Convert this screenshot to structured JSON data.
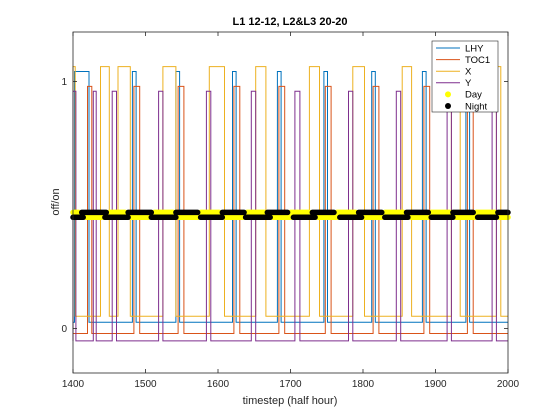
{
  "chart_data": {
    "type": "line",
    "title": "L1 12-12, L2&L3 20-20",
    "xlabel": "timestep (half hour)",
    "ylabel": "off/on",
    "xlim": [
      1400,
      2000
    ],
    "ylim": [
      -0.18,
      1.2
    ],
    "xticks": [
      1400,
      1500,
      1600,
      1700,
      1800,
      1900,
      2000
    ],
    "yticks": [
      0,
      1
    ],
    "xtick_labels": [
      "1400",
      "1500",
      "1600",
      "1700",
      "1800",
      "1900",
      "2000"
    ],
    "ytick_labels": [
      "0",
      "1"
    ],
    "grid": false,
    "legend_position": "top-right",
    "series": [
      {
        "name": "LHY",
        "kind": "pulse",
        "color": "#0072BD",
        "low": 0.025,
        "high": 1.04,
        "on": [
          [
            1402,
            1422
          ],
          [
            1482,
            1487
          ],
          [
            1542,
            1547
          ],
          [
            1620,
            1625
          ],
          [
            1682,
            1687
          ],
          [
            1746,
            1751
          ],
          [
            1812,
            1817
          ],
          [
            1882,
            1887
          ],
          [
            1942,
            1947
          ]
        ]
      },
      {
        "name": "TOC1",
        "kind": "pulse",
        "color": "#D95319",
        "low": -0.02,
        "high": 0.98,
        "on": [
          [
            1420,
            1426
          ],
          [
            1484,
            1492
          ],
          [
            1545,
            1553
          ],
          [
            1622,
            1630
          ],
          [
            1684,
            1692
          ],
          [
            1748,
            1756
          ],
          [
            1814,
            1822
          ],
          [
            1884,
            1892
          ],
          [
            1944,
            1952
          ]
        ]
      },
      {
        "name": "X",
        "kind": "pulse",
        "color": "#EDB120",
        "low": 0.05,
        "high": 1.06,
        "on": [
          [
            1400,
            1403
          ],
          [
            1438,
            1450
          ],
          [
            1462,
            1479
          ],
          [
            1524,
            1542
          ],
          [
            1588,
            1609
          ],
          [
            1652,
            1666
          ],
          [
            1726,
            1740
          ],
          [
            1786,
            1802
          ],
          [
            1854,
            1867
          ],
          [
            1922,
            1934
          ],
          [
            1984,
            1990
          ]
        ]
      },
      {
        "name": "Y",
        "kind": "pulse",
        "color": "#7E2F8E",
        "low": -0.05,
        "high": 0.96,
        "on": [
          [
            1400,
            1404
          ],
          [
            1428,
            1432
          ],
          [
            1454,
            1460
          ],
          [
            1518,
            1524
          ],
          [
            1584,
            1590
          ],
          [
            1646,
            1652
          ],
          [
            1706,
            1713
          ],
          [
            1780,
            1786
          ],
          [
            1846,
            1852
          ],
          [
            1916,
            1922
          ],
          [
            1978,
            1984
          ]
        ]
      },
      {
        "name": "Day",
        "kind": "marker",
        "color": "#FFFF00",
        "blocks": [
          {
            "y": 0.47,
            "ranges": [
              [
                1400,
                1408
              ],
              [
                1450,
                1472
              ],
              [
                1512,
                1538
              ],
              [
                1576,
                1602
              ],
              [
                1640,
                1664
              ],
              [
                1700,
                1726
              ],
              [
                1764,
                1790
              ],
              [
                1830,
                1856
              ],
              [
                1894,
                1920
              ],
              [
                1956,
                1982
              ]
            ]
          },
          {
            "y": 0.45,
            "ranges": [
              [
                1418,
                1440
              ],
              [
                1480,
                1504
              ],
              [
                1546,
                1572
              ],
              [
                1610,
                1634
              ],
              [
                1676,
                1700
              ],
              [
                1738,
                1764
              ],
              [
                1802,
                1826
              ],
              [
                1866,
                1890
              ],
              [
                1928,
                1954
              ],
              [
                1988,
                2000
              ]
            ]
          }
        ]
      },
      {
        "name": "Night",
        "kind": "marker",
        "color": "#000000",
        "blocks": [
          {
            "y": 0.47,
            "ranges": [
              [
                1412,
                1446
              ],
              [
                1476,
                1508
              ],
              [
                1542,
                1572
              ],
              [
                1606,
                1636
              ],
              [
                1668,
                1696
              ],
              [
                1730,
                1760
              ],
              [
                1794,
                1826
              ],
              [
                1860,
                1890
              ],
              [
                1924,
                1952
              ],
              [
                1986,
                2000
              ]
            ]
          },
          {
            "y": 0.45,
            "ranges": [
              [
                1400,
                1414
              ],
              [
                1444,
                1476
              ],
              [
                1508,
                1542
              ],
              [
                1576,
                1606
              ],
              [
                1638,
                1672
              ],
              [
                1704,
                1734
              ],
              [
                1768,
                1798
              ],
              [
                1830,
                1862
              ],
              [
                1894,
                1924
              ],
              [
                1958,
                1984
              ]
            ]
          }
        ]
      }
    ]
  }
}
